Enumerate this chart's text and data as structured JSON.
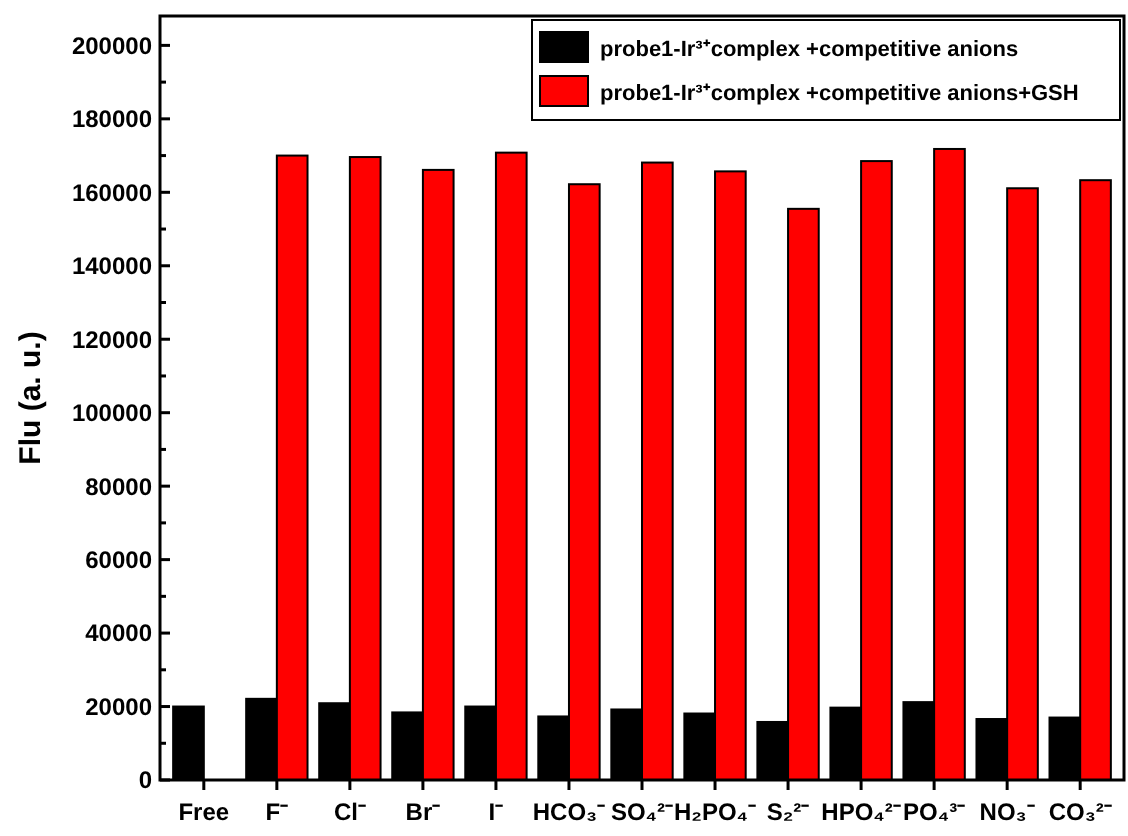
{
  "chart_data": {
    "type": "bar",
    "ylabel": "Flu (a. u.)",
    "categories": [
      "Free",
      "F⁻",
      "Cl⁻",
      "Br⁻",
      "I⁻",
      "HCO₃⁻",
      "SO₄²⁻",
      "H₂PO₄⁻",
      "S₂²⁻",
      "HPO₄²⁻",
      "PO₄³⁻",
      "NO₃⁻",
      "CO₃²⁻"
    ],
    "series": [
      {
        "name": "probe1-Ir³⁺complex +competitive anions",
        "color": "#000000",
        "values": [
          20000,
          22100,
          20900,
          18400,
          20000,
          17300,
          19200,
          18100,
          15800,
          19700,
          21200,
          16600,
          17000
        ]
      },
      {
        "name": "probe1-Ir³⁺complex +competitive anions+GSH",
        "color": "#ff0000",
        "values": [
          null,
          170000,
          169600,
          166100,
          170800,
          162200,
          168100,
          165700,
          155500,
          168500,
          171800,
          161100,
          163300
        ]
      }
    ],
    "ylim": [
      0,
      208000
    ],
    "yticks": [
      0,
      {
        "value": 10000,
        "label": null
      },
      20000,
      {
        "value": 30000,
        "label": null
      },
      40000,
      {
        "value": 50000,
        "label": null
      },
      60000,
      {
        "value": 70000,
        "label": null
      },
      80000,
      {
        "value": 90000,
        "label": null
      },
      100000,
      {
        "value": 110000,
        "label": null
      },
      120000,
      {
        "value": 130000,
        "label": null
      },
      140000,
      {
        "value": 150000,
        "label": null
      },
      160000,
      {
        "value": 170000,
        "label": null
      },
      180000,
      {
        "value": 190000,
        "label": null
      },
      200000
    ],
    "legend": "top right",
    "grid": false
  }
}
